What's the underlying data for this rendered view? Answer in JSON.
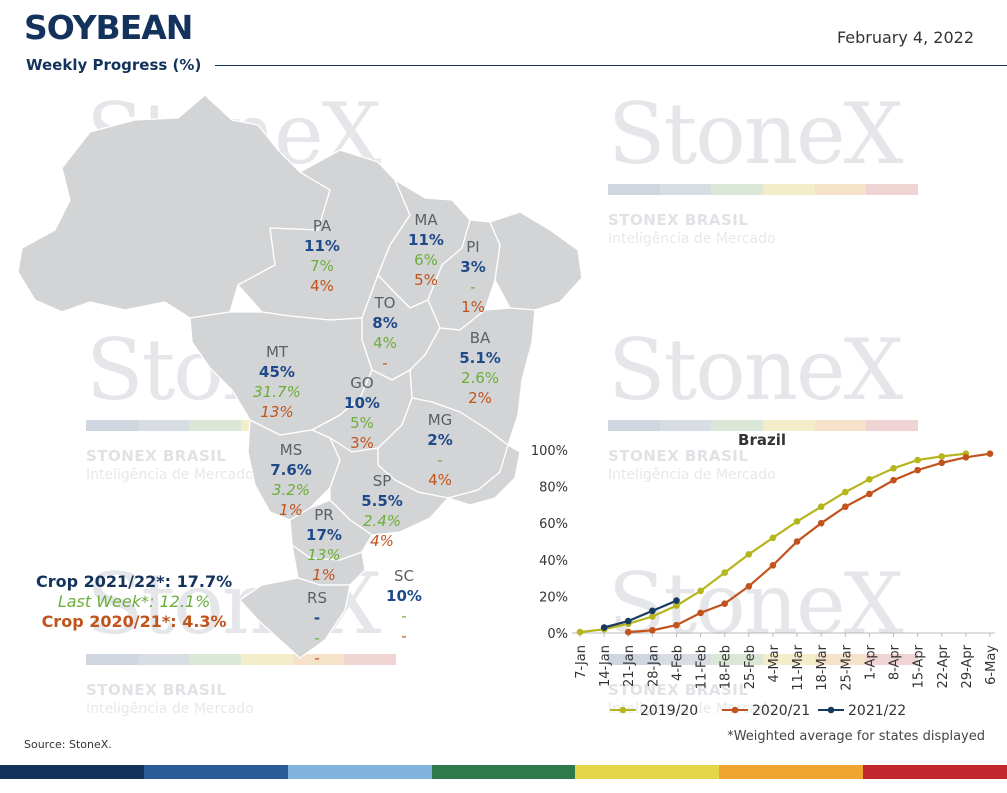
{
  "header": {
    "title": "SOYBEAN",
    "subtitle": "Weekly Progress (%)",
    "date": "February 4, 2022"
  },
  "watermark": {
    "logo": "StoneX",
    "brand": "STONEX BRASIL",
    "tagline": "Inteligência de Mercado",
    "bar_colors": [
      "#cfd6df",
      "#d8dde4",
      "#dbe8d8",
      "#f3edc9",
      "#f6e1c9",
      "#f0d4d4"
    ]
  },
  "states": {
    "PA": {
      "code": "PA",
      "v1": "11%",
      "v2": "7%",
      "v3": "4%"
    },
    "MA": {
      "code": "MA",
      "v1": "11%",
      "v2": "6%",
      "v3": "5%"
    },
    "PI": {
      "code": "PI",
      "v1": "3%",
      "v2": "-",
      "v3": "1%"
    },
    "TO": {
      "code": "TO",
      "v1": "8%",
      "v2": "4%",
      "v3": "-"
    },
    "BA": {
      "code": "BA",
      "v1": "5.1%",
      "v2": "2.6%",
      "v3": "2%"
    },
    "MT": {
      "code": "MT",
      "v1": "45%",
      "v2": "31.7%",
      "v3": "13%"
    },
    "GO": {
      "code": "GO",
      "v1": "10%",
      "v2": "5%",
      "v3": "3%"
    },
    "MG": {
      "code": "MG",
      "v1": "2%",
      "v2": "-",
      "v3": "4%"
    },
    "MS": {
      "code": "MS",
      "v1": "7.6%",
      "v2": "3.2%",
      "v3": "1%"
    },
    "SP": {
      "code": "SP",
      "v1": "5.5%",
      "v2": "2.4%",
      "v3": "4%"
    },
    "PR": {
      "code": "PR",
      "v1": "17%",
      "v2": "13%",
      "v3": "1%"
    },
    "SC": {
      "code": "SC",
      "v1": "10%",
      "v2": "-",
      "v3": "-"
    },
    "RS": {
      "code": "RS",
      "v1": "-",
      "v2": "-",
      "v3": "-"
    }
  },
  "totals": {
    "current": "Crop 2021/22*: 17.7%",
    "last_week": "Last Week*: 12.1%",
    "previous": "Crop 2020/21*: 4.3%"
  },
  "colors": {
    "navy": "#13335c",
    "blue": "#1e4a8a",
    "green": "#6cae3a",
    "orange": "#c0541c",
    "map_fill": "#d4d5d7",
    "series_2019": "#b5b51c",
    "series_2020": "#c0541c",
    "series_2021": "#173a63"
  },
  "source": "Source: StoneX.",
  "footnote": "*Weighted average for states displayed",
  "chart_data": {
    "type": "line",
    "title": "Brazil",
    "x": [
      "7-Jan",
      "14-Jan",
      "21-Jan",
      "28-Jan",
      "4-Feb",
      "11-Feb",
      "18-Feb",
      "25-Feb",
      "4-Mar",
      "11-Mar",
      "18-Mar",
      "25-Mar",
      "1-Apr",
      "8-Apr",
      "15-Apr",
      "22-Apr",
      "29-Apr",
      "6-May"
    ],
    "ylim": [
      0,
      100
    ],
    "yticks": [
      "0%",
      "20%",
      "40%",
      "60%",
      "80%",
      "100%"
    ],
    "series": [
      {
        "name": "2019/20",
        "color": "#b5b51c",
        "values": [
          0.5,
          2,
          5,
          9,
          15,
          23,
          33,
          43,
          52,
          61,
          69,
          77,
          84,
          90,
          94.5,
          96.5,
          98,
          null
        ]
      },
      {
        "name": "2020/21",
        "color": "#c0541c",
        "values": [
          null,
          null,
          0.5,
          1.5,
          4.3,
          11,
          16,
          25.5,
          37,
          50,
          60,
          69,
          76,
          83.5,
          89,
          93,
          96,
          98
        ]
      },
      {
        "name": "2021/22",
        "color": "#173a63",
        "values": [
          null,
          3,
          6.5,
          12.1,
          17.7,
          null,
          null,
          null,
          null,
          null,
          null,
          null,
          null,
          null,
          null,
          null,
          null,
          null
        ]
      }
    ],
    "legend_position": "bottom"
  },
  "colorbar": [
    "#13335c",
    "#2a5d98",
    "#7fb2dc",
    "#2f7a4a",
    "#e3d649",
    "#f0a531",
    "#c1282e"
  ]
}
